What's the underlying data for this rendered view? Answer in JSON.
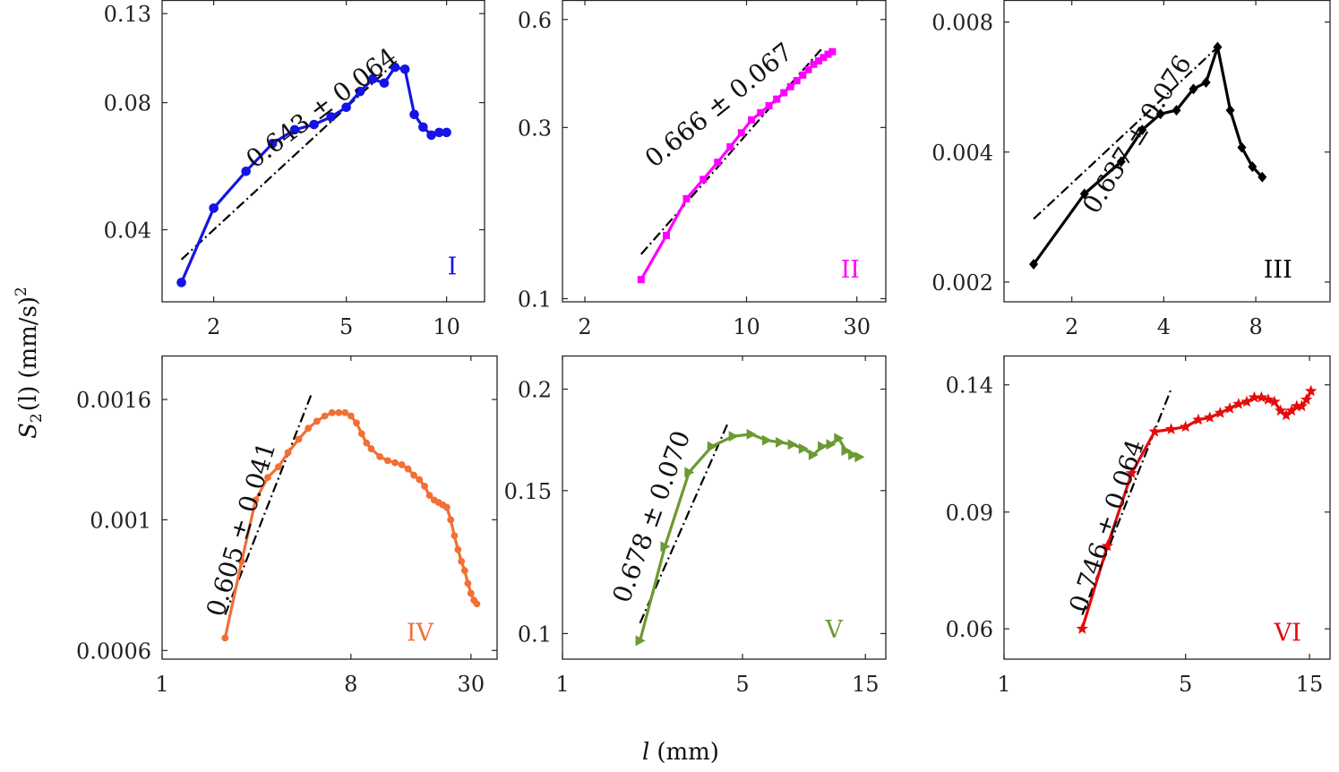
{
  "figure": {
    "ylabel_main": "S",
    "ylabel_sub": "2",
    "ylabel_rest": "(l)",
    "ylabel_units": "(mm/s)",
    "ylabel_sup": "2",
    "xlabel_var": "l",
    "xlabel_units": "(mm)"
  },
  "chart_data": [
    {
      "type": "line",
      "panel": "I",
      "color": "#1414e6",
      "marker": "circle",
      "xscale": "log",
      "yscale": "log",
      "xlim": [
        1.4,
        13
      ],
      "ylim": [
        0.027,
        0.14
      ],
      "xticks": [
        2,
        5,
        10
      ],
      "xtick_labels": [
        "2",
        "5",
        "10"
      ],
      "yticks": [
        0.04,
        0.08,
        0.13
      ],
      "ytick_labels": [
        "0.04",
        "0.08",
        "0.13"
      ],
      "series": [
        {
          "x": [
            1.6,
            2.0,
            2.5,
            3.0,
            3.5,
            4.0,
            4.5,
            5.0,
            5.5,
            6.0,
            6.5,
            7.0,
            7.5,
            8.0,
            8.5,
            9.0,
            9.5,
            10.0
          ],
          "y": [
            0.03,
            0.045,
            0.055,
            0.064,
            0.069,
            0.071,
            0.074,
            0.078,
            0.085,
            0.091,
            0.089,
            0.097,
            0.096,
            0.075,
            0.07,
            0.067,
            0.068,
            0.068
          ]
        }
      ],
      "fit": {
        "x": [
          1.6,
          7.0
        ],
        "y": [
          0.034,
          0.0995
        ]
      },
      "annotation": "0.643 ± 0.064"
    },
    {
      "type": "line",
      "panel": "II",
      "color": "#ff00ff",
      "marker": "square",
      "xscale": "log",
      "yscale": "log",
      "xlim": [
        1.6,
        40
      ],
      "ylim": [
        0.098,
        0.68
      ],
      "xticks": [
        2,
        10,
        30
      ],
      "xtick_labels": [
        "2",
        "10",
        "30"
      ],
      "yticks": [
        0.1,
        0.3,
        0.6
      ],
      "ytick_labels": [
        "0.1",
        "0.3",
        "0.6"
      ],
      "series": [
        {
          "x": [
            3.5,
            4.5,
            5.5,
            6.5,
            7.5,
            8.5,
            9.5,
            10.5,
            11.5,
            12.5,
            13.5,
            14.5,
            15.5,
            16.5,
            17.5,
            18.5,
            19.5,
            20.5,
            21.5,
            22.5,
            23.5
          ],
          "y": [
            0.113,
            0.15,
            0.19,
            0.215,
            0.24,
            0.265,
            0.29,
            0.315,
            0.33,
            0.345,
            0.36,
            0.375,
            0.39,
            0.405,
            0.42,
            0.435,
            0.45,
            0.46,
            0.47,
            0.48,
            0.488
          ]
        }
      ],
      "fit": {
        "x": [
          3.5,
          21
        ],
        "y": [
          0.133,
          0.495
        ]
      },
      "annotation": "0.666 ± 0.067"
    },
    {
      "type": "line",
      "panel": "III",
      "color": "#000000",
      "marker": "diamond",
      "xscale": "log",
      "yscale": "log",
      "xlim": [
        1.2,
        14
      ],
      "ylim": [
        0.0018,
        0.009
      ],
      "xticks": [
        2,
        4,
        8
      ],
      "xtick_labels": [
        "2",
        "4",
        "8"
      ],
      "yticks": [
        0.002,
        0.004,
        0.008
      ],
      "ytick_labels": [
        "0.002",
        "0.004",
        "0.008"
      ],
      "series": [
        {
          "x": [
            1.5,
            2.2,
            2.9,
            3.4,
            3.9,
            4.4,
            5.0,
            5.5,
            6.0,
            6.6,
            7.2,
            7.8,
            8.4
          ],
          "y": [
            0.0022,
            0.0032,
            0.0038,
            0.0045,
            0.0049,
            0.005,
            0.0056,
            0.0058,
            0.007,
            0.005,
            0.0041,
            0.0037,
            0.0035
          ]
        }
      ],
      "fit": {
        "x": [
          1.5,
          6.0
        ],
        "y": [
          0.0028,
          0.007
        ]
      },
      "annotation": "0.637 ± 0.076"
    },
    {
      "type": "line",
      "panel": "IV",
      "color": "#f26f35",
      "marker": "dot",
      "xscale": "log",
      "yscale": "log",
      "xlim": [
        1,
        40
      ],
      "ylim": [
        0.00058,
        0.0019
      ],
      "xticks": [
        1,
        8,
        30
      ],
      "xtick_labels": [
        "1",
        "8",
        "30"
      ],
      "yticks": [
        0.0006,
        0.001,
        0.0016
      ],
      "ytick_labels": [
        "0.0006",
        "0.001",
        "0.0016"
      ],
      "series": [
        {
          "x": [
            2.0,
            2.4,
            2.8,
            3.2,
            3.6,
            4.0,
            4.5,
            5.0,
            5.5,
            6.0,
            6.5,
            7.0,
            7.5,
            8.0,
            8.5,
            9.0,
            9.5,
            10,
            11,
            12,
            13,
            14,
            15,
            16,
            17,
            18,
            19,
            20,
            21,
            22,
            23,
            24,
            25,
            26,
            27,
            28,
            29,
            30,
            31,
            32
          ],
          "y": [
            0.00063,
            0.00085,
            0.00108,
            0.00118,
            0.00123,
            0.0013,
            0.00137,
            0.00143,
            0.00147,
            0.0015,
            0.00152,
            0.00152,
            0.00152,
            0.0015,
            0.00146,
            0.0014,
            0.00135,
            0.00132,
            0.00128,
            0.00126,
            0.00125,
            0.00124,
            0.00122,
            0.00119,
            0.00117,
            0.00114,
            0.0011,
            0.00108,
            0.00107,
            0.00106,
            0.00105,
            0.001,
            0.00094,
            0.00089,
            0.00085,
            0.00082,
            0.00078,
            0.00075,
            0.00073,
            0.00072
          ]
        }
      ],
      "fit": {
        "x": [
          2.0,
          5.2
        ],
        "y": [
          0.00069,
          0.00164
        ]
      },
      "annotation": "0.605 ± 0.041"
    },
    {
      "type": "line",
      "panel": "V",
      "color": "#6b9a32",
      "marker": "triangle-right",
      "xscale": "log",
      "yscale": "log",
      "xlim": [
        1,
        18
      ],
      "ylim": [
        0.093,
        0.22
      ],
      "xticks": [
        1,
        5,
        15
      ],
      "xtick_labels": [
        "1",
        "5",
        "15"
      ],
      "yticks": [
        0.1,
        0.15,
        0.2
      ],
      "ytick_labels": [
        "0.1",
        "0.15",
        "0.2"
      ],
      "series": [
        {
          "x": [
            2.0,
            2.5,
            3.1,
            3.8,
            4.6,
            5.4,
            6.2,
            7.0,
            7.8,
            8.6,
            9.4,
            10.2,
            11.0,
            11.8,
            12.6,
            13.4,
            14.2
          ],
          "y": [
            0.098,
            0.128,
            0.158,
            0.17,
            0.175,
            0.176,
            0.173,
            0.172,
            0.171,
            0.169,
            0.166,
            0.17,
            0.171,
            0.174,
            0.168,
            0.166,
            0.165
          ]
        }
      ],
      "fit": {
        "x": [
          2.0,
          4.4
        ],
        "y": [
          0.103,
          0.182
        ]
      },
      "annotation": "0.678 ± 0.070"
    },
    {
      "type": "line",
      "panel": "VI",
      "color": "#e60b0b",
      "marker": "star",
      "xscale": "log",
      "yscale": "log",
      "xlim": [
        1,
        18
      ],
      "ylim": [
        0.054,
        0.155
      ],
      "xticks": [
        1,
        5,
        15
      ],
      "xtick_labels": [
        "1",
        "5",
        "15"
      ],
      "yticks": [
        0.06,
        0.09,
        0.14
      ],
      "ytick_labels": [
        "0.06",
        "0.09",
        "0.14"
      ],
      "series": [
        {
          "x": [
            2.0,
            2.5,
            3.1,
            3.8,
            4.4,
            5.0,
            5.6,
            6.2,
            6.8,
            7.4,
            8.0,
            8.6,
            9.2,
            9.8,
            10.4,
            11.0,
            11.6,
            12.2,
            12.8,
            13.4,
            14.0,
            14.6,
            15.2
          ],
          "y": [
            0.06,
            0.08,
            0.103,
            0.119,
            0.12,
            0.121,
            0.124,
            0.125,
            0.127,
            0.129,
            0.131,
            0.132,
            0.134,
            0.134,
            0.133,
            0.132,
            0.128,
            0.126,
            0.128,
            0.13,
            0.13,
            0.133,
            0.137
          ]
        }
      ],
      "fit": {
        "x": [
          2.0,
          4.4
        ],
        "y": [
          0.063,
          0.138
        ]
      },
      "annotation": "0.746 ± 0.064"
    }
  ]
}
